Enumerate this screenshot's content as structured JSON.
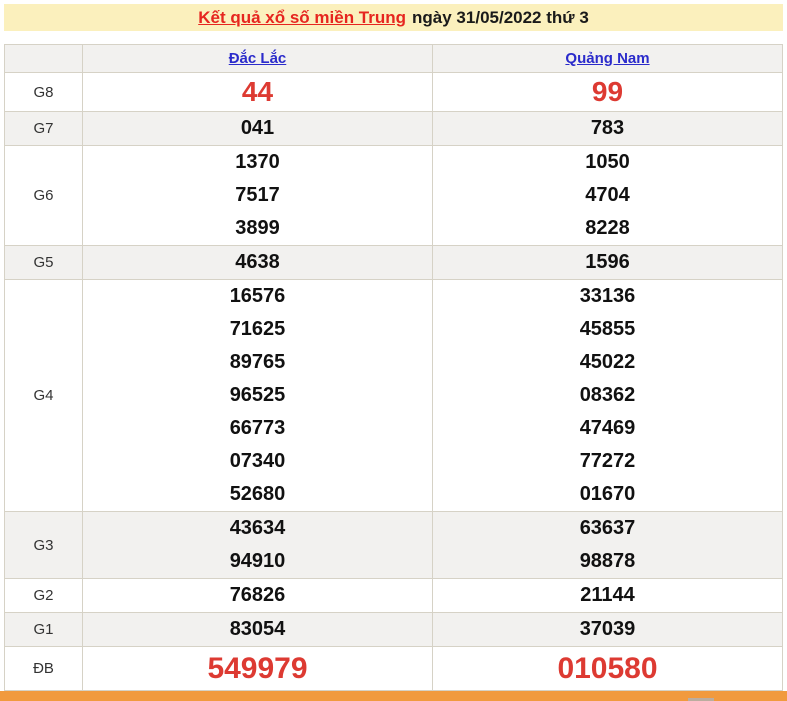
{
  "header": {
    "title_link": "Kết quả xổ số miền Trung",
    "title_rest": "ngày 31/05/2022 thứ 3"
  },
  "table": {
    "columns": [
      "Đắc Lắc",
      "Quảng Nam"
    ],
    "rows": [
      {
        "label": "G8",
        "style": "red-large",
        "values": [
          [
            "44"
          ],
          [
            "99"
          ]
        ]
      },
      {
        "label": "G7",
        "style": "normal",
        "values": [
          [
            "041"
          ],
          [
            "783"
          ]
        ]
      },
      {
        "label": "G6",
        "style": "normal",
        "values": [
          [
            "1370",
            "7517",
            "3899"
          ],
          [
            "1050",
            "4704",
            "8228"
          ]
        ]
      },
      {
        "label": "G5",
        "style": "normal",
        "values": [
          [
            "4638"
          ],
          [
            "1596"
          ]
        ]
      },
      {
        "label": "G4",
        "style": "normal",
        "values": [
          [
            "16576",
            "71625",
            "89765",
            "96525",
            "66773",
            "07340",
            "52680"
          ],
          [
            "33136",
            "45855",
            "45022",
            "08362",
            "47469",
            "77272",
            "01670"
          ]
        ]
      },
      {
        "label": "G3",
        "style": "normal",
        "values": [
          [
            "43634",
            "94910"
          ],
          [
            "63637",
            "98878"
          ]
        ]
      },
      {
        "label": "G2",
        "style": "normal",
        "values": [
          [
            "76826"
          ],
          [
            "21144"
          ]
        ]
      },
      {
        "label": "G1",
        "style": "normal",
        "values": [
          [
            "83054"
          ],
          [
            "37039"
          ]
        ]
      },
      {
        "label": "ĐB",
        "style": "red-xlarge",
        "values": [
          [
            "549979"
          ],
          [
            "010580"
          ]
        ]
      }
    ]
  },
  "colors": {
    "banner_background": "#fbf0bd",
    "title_red": "#e6251f",
    "link_blue": "#2b2bcb",
    "result_red": "#dd3a32",
    "number_black": "#111111",
    "shaded_row": "#f2f1ef",
    "table_border": "#d6d2c6",
    "bottom_bar_orange": "#f19a3e"
  }
}
